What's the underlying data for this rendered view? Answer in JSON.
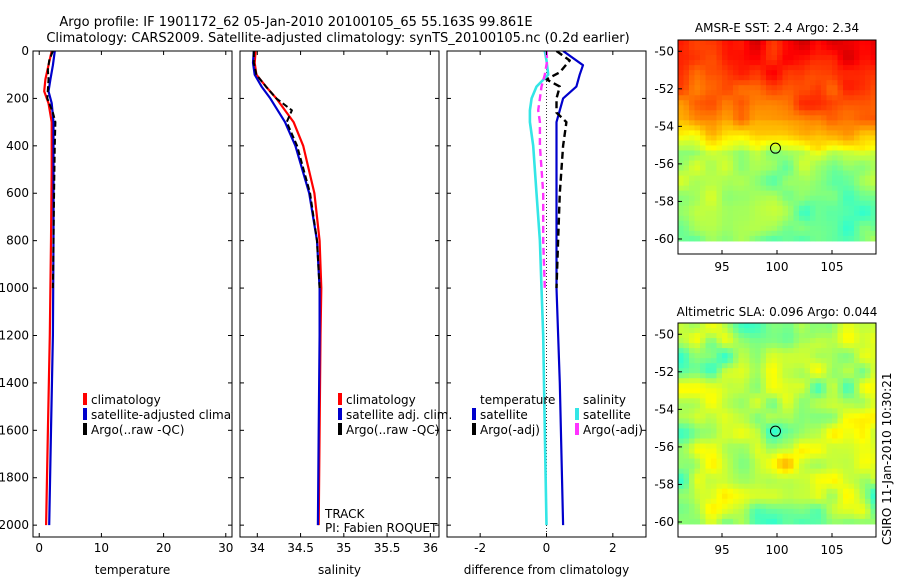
{
  "header": {
    "line1": "Argo profile: IF 1901172_62 05-Jan-2010 20100105_65 55.163S 99.861E",
    "line2": "Climatology: CARS2009. Satellite-adjusted climatology: synTS_20100105.nc (0.2d earlier)"
  },
  "side_text": "CSIRO 11-Jan-2010 10:30:21",
  "colors": {
    "climatology": "#ff0000",
    "satellite": "#0000cc",
    "argo": "#000000",
    "salinity_satellite": "#33e6e6",
    "salinity_argo": "#ff33ff"
  },
  "chart_data": [
    {
      "type": "line",
      "id": "temperature_panel",
      "xlabel": "temperature",
      "ylabel": "",
      "xlim": [
        -1,
        31
      ],
      "ylim": [
        2050,
        0
      ],
      "xticks": [
        0,
        10,
        20,
        30
      ],
      "yticks": [
        0,
        200,
        400,
        600,
        800,
        1000,
        1200,
        1400,
        1600,
        1800,
        2000
      ],
      "legend": [
        "climatology",
        "satellite-adjusted climatology",
        "Argo(..raw -QC)"
      ],
      "series": [
        {
          "name": "climatology",
          "depth": [
            0,
            60,
            120,
            170,
            220,
            300,
            500,
            800,
            1200,
            1600,
            2000
          ],
          "values": [
            2.0,
            1.5,
            1.0,
            0.8,
            1.5,
            2.0,
            2.0,
            1.9,
            1.7,
            1.4,
            1.1
          ]
        },
        {
          "name": "satellite-adjusted climatology",
          "depth": [
            0,
            60,
            120,
            170,
            220,
            300,
            500,
            800,
            1200,
            1600,
            2000
          ],
          "values": [
            2.5,
            2.2,
            1.8,
            1.5,
            2.0,
            2.3,
            2.3,
            2.3,
            2.2,
            1.9,
            1.6
          ]
        },
        {
          "name": "Argo(..raw -QC)",
          "depth": [
            0,
            40,
            80,
            120,
            160,
            200,
            260,
            300,
            400,
            600,
            800,
            1000
          ],
          "values": [
            2.2,
            1.6,
            1.4,
            1.5,
            1.4,
            1.3,
            2.2,
            2.6,
            2.5,
            2.4,
            2.3,
            2.2
          ]
        }
      ]
    },
    {
      "type": "line",
      "id": "salinity_panel",
      "xlabel": "salinity",
      "ylabel": "",
      "xlim": [
        33.8,
        36.1
      ],
      "ylim": [
        2050,
        0
      ],
      "xticks": [
        34,
        34.5,
        35,
        35.5,
        36
      ],
      "legend": [
        "climatology",
        "satellite adj. clim.",
        "Argo(..raw -QC)"
      ],
      "annotations": [
        "TRACK",
        "PI: Fabien ROQUET"
      ],
      "series": [
        {
          "name": "climatology",
          "depth": [
            0,
            50,
            100,
            150,
            200,
            300,
            400,
            600,
            800,
            1000,
            1200,
            1600,
            2000
          ],
          "values": [
            33.98,
            33.97,
            33.99,
            34.1,
            34.22,
            34.42,
            34.53,
            34.66,
            34.72,
            34.74,
            34.73,
            34.72,
            34.71
          ]
        },
        {
          "name": "satellite adj. clim.",
          "depth": [
            0,
            50,
            100,
            150,
            200,
            300,
            400,
            600,
            800,
            1000,
            1200,
            1600,
            2000
          ],
          "values": [
            33.96,
            33.95,
            33.97,
            34.05,
            34.15,
            34.32,
            34.44,
            34.6,
            34.69,
            34.72,
            34.72,
            34.71,
            34.7
          ]
        },
        {
          "name": "Argo(..raw -QC)",
          "depth": [
            0,
            50,
            100,
            150,
            200,
            250,
            300,
            400,
            600,
            800,
            1000
          ],
          "values": [
            33.96,
            33.96,
            33.99,
            34.1,
            34.22,
            34.4,
            34.34,
            34.46,
            34.61,
            34.69,
            34.72
          ]
        }
      ]
    },
    {
      "type": "line",
      "id": "difference_panel",
      "xlabel": "difference from climatology",
      "ylabel": "",
      "xlim": [
        -3,
        3
      ],
      "ylim": [
        2050,
        0
      ],
      "xticks": [
        -2,
        0,
        2
      ],
      "legend": [
        "temperature",
        "satellite",
        "Argo(-adj)",
        "salinity",
        "satellite",
        "Argo(-adj)"
      ],
      "series": [
        {
          "name": "temperature satellite",
          "depth": [
            0,
            60,
            100,
            150,
            200,
            300,
            600,
            1000,
            1400,
            2000
          ],
          "values": [
            0.5,
            1.1,
            1.0,
            0.9,
            0.5,
            0.3,
            0.3,
            0.3,
            0.4,
            0.5
          ]
        },
        {
          "name": "temperature Argo(-adj)",
          "depth": [
            0,
            40,
            90,
            120,
            150,
            200,
            260,
            300,
            400,
            600,
            800,
            1000
          ],
          "values": [
            0.3,
            0.7,
            0.4,
            0.0,
            0.4,
            0.3,
            0.3,
            0.6,
            0.5,
            0.4,
            0.35,
            0.3
          ]
        },
        {
          "name": "salinity satellite",
          "depth": [
            0,
            40,
            100,
            150,
            200,
            250,
            300,
            400,
            600,
            800,
            1000,
            1200,
            1600,
            2000
          ],
          "values": [
            -0.05,
            0.0,
            0.05,
            -0.3,
            -0.45,
            -0.5,
            -0.5,
            -0.4,
            -0.3,
            -0.2,
            -0.15,
            -0.1,
            -0.05,
            0.0
          ]
        },
        {
          "name": "salinity Argo(-adj)",
          "depth": [
            0,
            40,
            100,
            150,
            200,
            250,
            300,
            400,
            600,
            800,
            1000
          ],
          "values": [
            0.0,
            0.02,
            -0.05,
            -0.15,
            -0.2,
            -0.25,
            -0.2,
            -0.2,
            -0.1,
            -0.1,
            -0.05
          ]
        }
      ]
    },
    {
      "type": "heatmap",
      "id": "sst_map",
      "title": "AMSR-E SST: 2.4 Argo: 2.34",
      "xticks": [
        95,
        100,
        105
      ],
      "yticks": [
        -50,
        -52,
        -54,
        -56,
        -58,
        -60
      ],
      "xlim": [
        91,
        109
      ],
      "ylim": [
        -60.8,
        -49.4
      ],
      "marker": {
        "lon": 99.861,
        "lat": -55.163
      }
    },
    {
      "type": "heatmap",
      "id": "sla_map",
      "title": "Altimetric SLA: 0.096 Argo: 0.044",
      "xticks": [
        95,
        100,
        105
      ],
      "yticks": [
        -50,
        -52,
        -54,
        -56,
        -58,
        -60
      ],
      "xlim": [
        91,
        109
      ],
      "ylim": [
        -60.8,
        -49.4
      ],
      "marker": {
        "lon": 99.861,
        "lat": -55.163
      }
    }
  ]
}
